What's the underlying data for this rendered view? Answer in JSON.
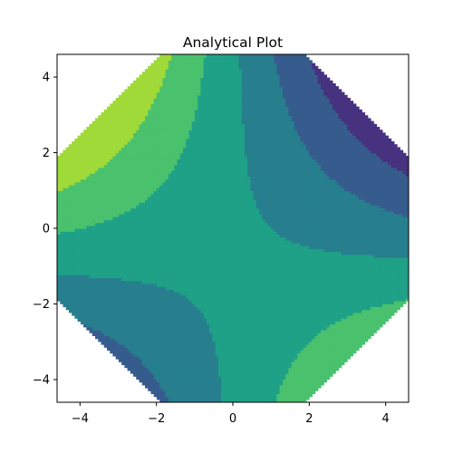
{
  "chart_data": {
    "type": "contour",
    "title": "Analytical Plot",
    "xlabel": "",
    "ylabel": "",
    "xlim": [
      -4.6,
      4.6
    ],
    "ylim": [
      -4.6,
      4.6
    ],
    "grid": false,
    "legend": "none",
    "x_ticks": [
      {
        "value": -4,
        "label": "−4"
      },
      {
        "value": -2,
        "label": "−2"
      },
      {
        "value": 0,
        "label": "0"
      },
      {
        "value": 2,
        "label": "2"
      },
      {
        "value": 4,
        "label": "4"
      }
    ],
    "y_ticks": [
      {
        "value": 4,
        "label": "4"
      },
      {
        "value": 2,
        "label": "2"
      },
      {
        "value": 0,
        "label": "0"
      },
      {
        "value": -2,
        "label": "−2"
      },
      {
        "value": -4,
        "label": "−4"
      }
    ],
    "domain_corner_cut": 6.5,
    "colormap": "viridis",
    "levels": [
      -2.0,
      -1.5,
      -1.0,
      -0.5,
      0.0,
      0.5,
      1.0,
      1.5
    ],
    "level_colors": [
      "#440154",
      "#46327e",
      "#365c8d",
      "#277f8e",
      "#1fa187",
      "#4ac16d",
      "#a0da39",
      "#fde725"
    ],
    "function_coefficients": {
      "xy": -0.1,
      "x": -0.1,
      "const": 0.1
    }
  }
}
